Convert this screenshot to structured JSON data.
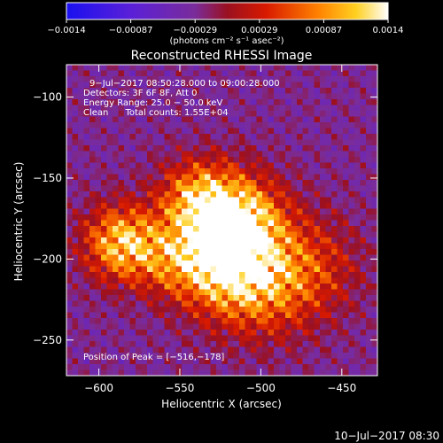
{
  "colorbar": {
    "ticks": [
      "−0.0014",
      "−0.00087",
      "−0.00029",
      "0.00029",
      "0.00087",
      "0.0014"
    ],
    "unit": "(photons cm⁻² s⁻¹ asec⁻²)",
    "scale_min": -0.0014,
    "scale_max": 0.0014
  },
  "plot": {
    "title": "Reconstructed RHESSI Image",
    "annotations": [
      "9−Jul−2017 08:50:28.000 to 09:00:28.000",
      "Detectors: 3F 6F 8F, Att 0",
      "Energy Range: 25.0 − 50.0 keV",
      "Clean      Total counts: 1.55E+04"
    ],
    "peak_label": "Position of Peak = [−516,−178]",
    "xlabel": "Heliocentric X (arcsec)",
    "ylabel": "Heliocentric Y (arcsec)",
    "xticks": [
      "−600",
      "−550",
      "−500",
      "−450"
    ],
    "yticks": [
      "−100",
      "−150",
      "−200",
      "−250"
    ],
    "xlim": [
      -620,
      -428
    ],
    "ylim": [
      -272,
      -80
    ],
    "peak": [
      -516,
      -178
    ]
  },
  "footer": {
    "timestamp": "10−Jul−2017 08:30"
  },
  "image_sources": [
    {
      "x": -516,
      "y": -178,
      "amp": 1.0,
      "sigma": 20
    },
    {
      "x": -586,
      "y": -190,
      "amp": 0.78,
      "sigma": 16
    },
    {
      "x": -540,
      "y": -162,
      "amp": 0.55,
      "sigma": 16
    },
    {
      "x": -525,
      "y": -205,
      "amp": 0.6,
      "sigma": 20
    },
    {
      "x": -500,
      "y": -218,
      "amp": 0.45,
      "sigma": 22
    },
    {
      "x": -470,
      "y": -205,
      "amp": 0.35,
      "sigma": 22
    },
    {
      "x": -555,
      "y": -200,
      "amp": 0.4,
      "sigma": 16
    }
  ]
}
